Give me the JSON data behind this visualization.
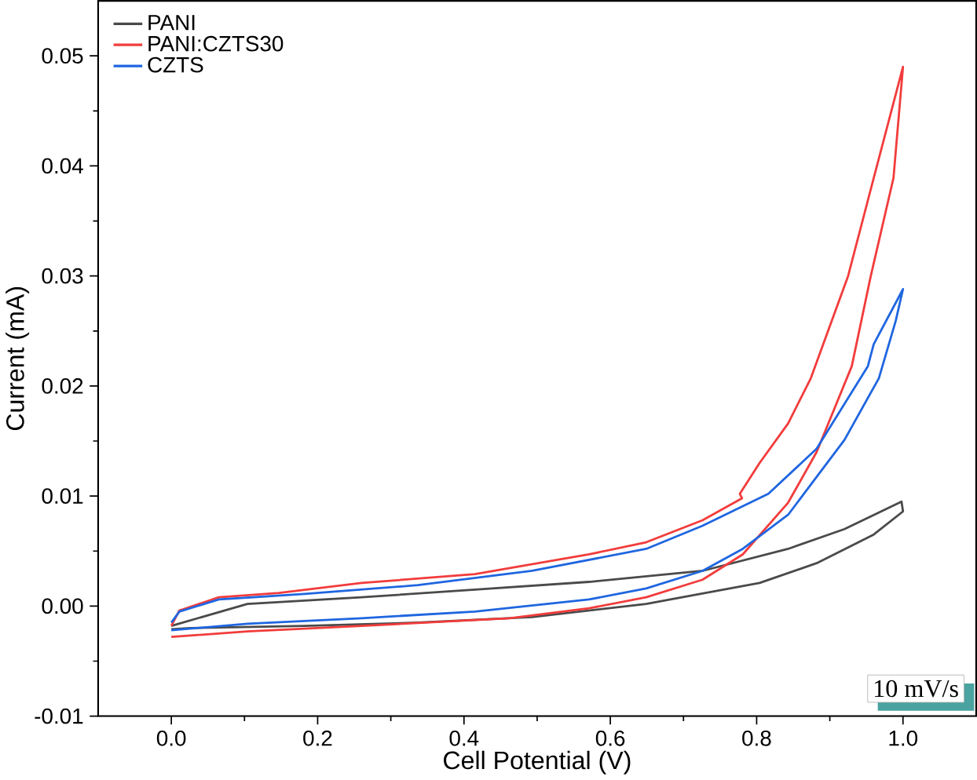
{
  "chart_data": {
    "type": "line",
    "xlabel": "Cell Potential (V)",
    "ylabel": "Current (mA)",
    "xlim": [
      -0.1,
      1.1
    ],
    "ylim": [
      -0.01,
      0.055
    ],
    "xticks": [
      {
        "value": 0,
        "label": "0.0"
      },
      {
        "value": 0.2,
        "label": "0.2"
      },
      {
        "value": 0.4,
        "label": "0.4"
      },
      {
        "value": 0.6,
        "label": "0.6"
      },
      {
        "value": 0.8,
        "label": "0.8"
      },
      {
        "value": 1.0,
        "label": "1.0"
      }
    ],
    "yticks": [
      {
        "value": -0.01,
        "label": "-0.01"
      },
      {
        "value": 0,
        "label": "0.00"
      },
      {
        "value": 0.01,
        "label": "0.01"
      },
      {
        "value": 0.02,
        "label": "0.02"
      },
      {
        "value": 0.03,
        "label": "0.03"
      },
      {
        "value": 0.04,
        "label": "0.04"
      },
      {
        "value": 0.05,
        "label": "0.05"
      }
    ],
    "legend": "top left",
    "marker": "none",
    "line_style": "solid",
    "grid": false,
    "annotations": [
      "10 mV/s"
    ],
    "series": [
      {
        "name": "PANI",
        "color": "#4a4a4a",
        "x": [
          0,
          0.104,
          0.26,
          0.415,
          0.571,
          0.726,
          0.843,
          0.92,
          0.998,
          1.0,
          0.96,
          0.882,
          0.804,
          0.649,
          0.493,
          0.337,
          0.182,
          0.026,
          0
        ],
        "values": [
          -0.0018,
          0.0002,
          0.0008,
          0.0015,
          0.0022,
          0.0032,
          0.0052,
          0.007,
          0.0095,
          0.0086,
          0.0065,
          0.0039,
          0.0021,
          0.0002,
          -0.001,
          -0.0015,
          -0.0018,
          -0.002,
          -0.0021
        ]
      },
      {
        "name": "PANI:CZTS30",
        "color": "#f23c3c",
        "x": [
          0,
          0.104,
          0.26,
          0.462,
          0.571,
          0.649,
          0.726,
          0.781,
          0.843,
          0.882,
          0.93,
          0.956,
          0.987,
          1.0,
          0.96,
          0.925,
          0.874,
          0.843,
          0.804,
          0.777,
          0.78,
          0.726,
          0.649,
          0.571,
          0.415,
          0.26,
          0.147,
          0.065,
          0.011,
          0
        ],
        "values": [
          -0.0028,
          -0.0023,
          -0.0018,
          -0.0011,
          -0.0002,
          0.0008,
          0.0024,
          0.0047,
          0.0094,
          0.014,
          0.0218,
          0.03,
          0.0389,
          0.049,
          0.0389,
          0.03,
          0.0207,
          0.0166,
          0.013,
          0.0102,
          0.0098,
          0.0078,
          0.0058,
          0.0047,
          0.0029,
          0.0021,
          0.0012,
          0.0008,
          -0.0004,
          -0.0018
        ]
      },
      {
        "name": "CZTS",
        "color": "#1f66e0",
        "x": [
          0,
          0.104,
          0.26,
          0.415,
          0.571,
          0.649,
          0.726,
          0.781,
          0.843,
          0.92,
          0.967,
          0.99,
          1.0,
          0.96,
          0.952,
          0.882,
          0.816,
          0.726,
          0.649,
          0.493,
          0.337,
          0.182,
          0.065,
          0.011,
          0
        ],
        "values": [
          -0.0022,
          -0.0016,
          -0.0011,
          -0.0005,
          0.0006,
          0.0016,
          0.0032,
          0.0052,
          0.0083,
          0.0151,
          0.0207,
          0.0259,
          0.0288,
          0.0238,
          0.0218,
          0.0143,
          0.0102,
          0.0073,
          0.0052,
          0.0032,
          0.0019,
          0.0011,
          0.0006,
          -0.0005,
          -0.0015
        ]
      }
    ]
  }
}
